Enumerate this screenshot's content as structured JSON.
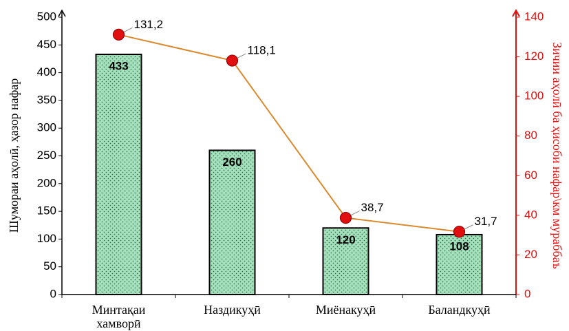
{
  "chart_data": {
    "type": "combo",
    "categories": [
      "Минтақаи хамворӣ",
      "Наздикуҳӣ",
      "Миёнакуҳӣ",
      "Баландкуҳӣ"
    ],
    "y_label": "Шумораи аҳолӣ, ҳазор нафар",
    "y2_label": "Зичии аҳолӣ ба ҳисоби нафар\\км мураббаъ",
    "ylim": [
      0,
      500
    ],
    "yticks": [
      0,
      50,
      100,
      150,
      200,
      250,
      300,
      350,
      400,
      450,
      500
    ],
    "y2lim": [
      0,
      140
    ],
    "y2ticks": [
      0,
      20,
      40,
      60,
      80,
      100,
      120,
      140
    ],
    "y2_color": "#e01010",
    "series": [
      {
        "type": "bar",
        "color": "#a6e0bd",
        "values": [
          433,
          260,
          120,
          108
        ]
      },
      {
        "type": "line",
        "axis": "y2",
        "color": "#d98a2e",
        "marker_color": "#e01010",
        "values": [
          131.2,
          118.1,
          38.7,
          31.7
        ],
        "value_labels": [
          "131,2",
          "118,1",
          "38,7",
          "31,7"
        ]
      }
    ]
  }
}
